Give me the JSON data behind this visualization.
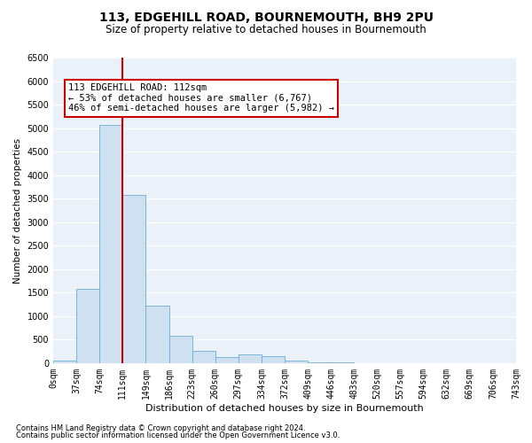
{
  "title": "113, EDGEHILL ROAD, BOURNEMOUTH, BH9 2PU",
  "subtitle": "Size of property relative to detached houses in Bournemouth",
  "xlabel": "Distribution of detached houses by size in Bournemouth",
  "ylabel": "Number of detached properties",
  "footnote1": "Contains HM Land Registry data © Crown copyright and database right 2024.",
  "footnote2": "Contains public sector information licensed under the Open Government Licence v3.0.",
  "bin_labels": [
    "0sqm",
    "37sqm",
    "74sqm",
    "111sqm",
    "149sqm",
    "186sqm",
    "223sqm",
    "260sqm",
    "297sqm",
    "334sqm",
    "372sqm",
    "409sqm",
    "446sqm",
    "483sqm",
    "520sqm",
    "557sqm",
    "594sqm",
    "632sqm",
    "669sqm",
    "706sqm",
    "743sqm"
  ],
  "bar_values": [
    50,
    1580,
    5060,
    3580,
    1230,
    590,
    270,
    130,
    195,
    150,
    48,
    28,
    10,
    5,
    2,
    0,
    0,
    0,
    0,
    0
  ],
  "bar_color": "#cfe0f0",
  "bar_edge_color": "#6aaed6",
  "vline_color": "#cc0000",
  "annotation_text": "113 EDGEHILL ROAD: 112sqm\n← 53% of detached houses are smaller (6,767)\n46% of semi-detached houses are larger (5,982) →",
  "annotation_box_color": "#cc0000",
  "ylim": [
    0,
    6500
  ],
  "yticks": [
    0,
    500,
    1000,
    1500,
    2000,
    2500,
    3000,
    3500,
    4000,
    4500,
    5000,
    5500,
    6000,
    6500
  ],
  "background_color": "#eaf1f8",
  "grid_color": "#ffffff",
  "title_fontsize": 10,
  "subtitle_fontsize": 8.5,
  "xlabel_fontsize": 8,
  "ylabel_fontsize": 7.5,
  "tick_fontsize": 7,
  "annot_fontsize": 7.5,
  "footnote_fontsize": 6
}
